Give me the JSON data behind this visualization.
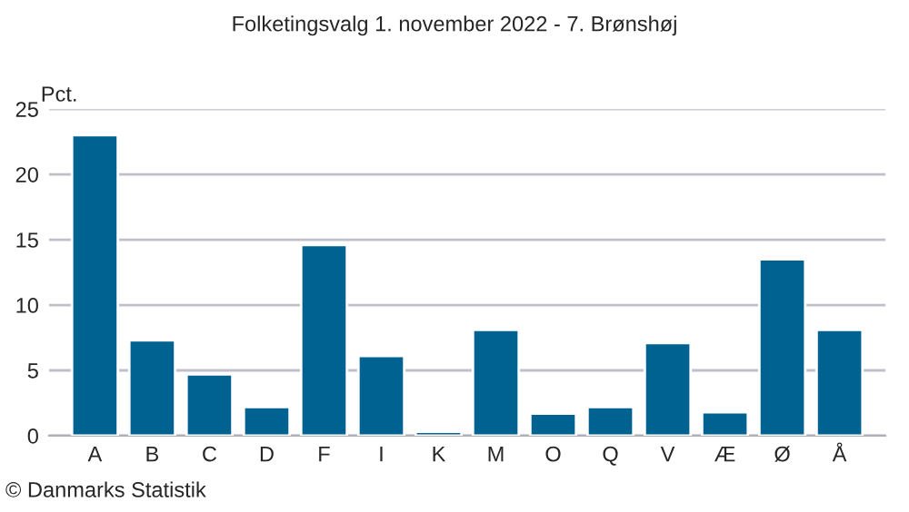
{
  "chart_data": {
    "type": "bar",
    "title": "Folketingsvalg 1. november 2022 - 7. Brønshøj",
    "ylabel": "Pct.",
    "categories": [
      "A",
      "B",
      "C",
      "D",
      "F",
      "I",
      "K",
      "M",
      "O",
      "Q",
      "V",
      "Æ",
      "Ø",
      "Å"
    ],
    "values": [
      23.0,
      7.3,
      4.7,
      2.2,
      14.6,
      6.1,
      0.3,
      8.1,
      1.7,
      2.2,
      7.1,
      1.8,
      13.5,
      8.1
    ],
    "color": "#006290",
    "ylim": [
      0,
      25
    ],
    "yticks": [
      0,
      5,
      10,
      15,
      20,
      25
    ],
    "grid": "y",
    "annotations": [
      "© Danmarks Statistik"
    ]
  }
}
